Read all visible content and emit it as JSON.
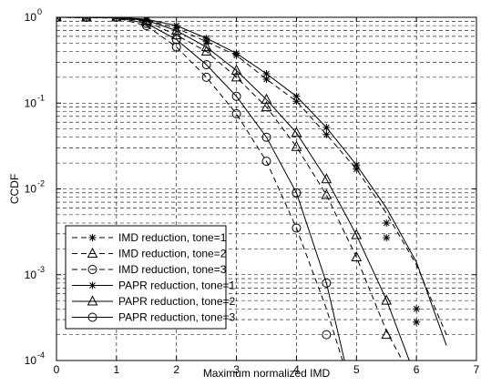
{
  "chart_data": {
    "type": "line",
    "xlabel": "Maximum normalized IMD",
    "ylabel": "CCDF",
    "xlim": [
      0,
      7
    ],
    "ylim": [
      0.0001,
      1
    ],
    "yscale": "log",
    "grid": true,
    "legend_position": "bottom-left",
    "x_ticks": [
      "0",
      "1",
      "2",
      "3",
      "4",
      "5",
      "6",
      "7"
    ],
    "y_ticks": [
      {
        "base": "10",
        "exp": "0"
      },
      {
        "base": "10",
        "exp": "-1"
      },
      {
        "base": "10",
        "exp": "-2"
      },
      {
        "base": "10",
        "exp": "-3"
      },
      {
        "base": "10",
        "exp": "-4"
      }
    ],
    "series": [
      {
        "name": "IMD reduction, tone=1",
        "style": "dashed",
        "marker": "star",
        "x": [
          0,
          1.0,
          1.5,
          2.0,
          2.5,
          3.0,
          3.5,
          4.0,
          4.5,
          5.0,
          5.5,
          6.0,
          6.5
        ],
        "y": [
          1,
          0.995,
          0.93,
          0.75,
          0.52,
          0.36,
          0.19,
          0.105,
          0.043,
          0.017,
          0.0052,
          0.0013,
          0.0002
        ],
        "markers_x": [
          0,
          0.5,
          1.0,
          1.5,
          2.0,
          2.5,
          3.0,
          3.5,
          4.0,
          4.5,
          5.0,
          5.5,
          6.0
        ],
        "markers_y": [
          1,
          1,
          1,
          0.93,
          0.75,
          0.52,
          0.36,
          0.19,
          0.105,
          0.043,
          0.017,
          0.0027,
          0.00028
        ]
      },
      {
        "name": "IMD reduction, tone=2",
        "style": "dashed",
        "marker": "triangle",
        "x": [
          0,
          1.0,
          1.5,
          2.0,
          2.5,
          3.0,
          3.5,
          4.0,
          4.5,
          5.0,
          5.5,
          6.0
        ],
        "y": [
          1,
          0.99,
          0.9,
          0.62,
          0.4,
          0.2,
          0.09,
          0.031,
          0.0085,
          0.0016,
          0.00022,
          5e-05
        ],
        "markers_x": [
          0,
          0.5,
          1.0,
          1.5,
          2.0,
          2.5,
          3.0,
          3.5,
          4.0,
          4.5,
          5.0,
          5.5
        ],
        "markers_y": [
          1,
          1,
          1,
          0.9,
          0.62,
          0.4,
          0.2,
          0.09,
          0.031,
          0.0085,
          0.0016,
          0.0002
        ]
      },
      {
        "name": "IMD reduction, tone=3",
        "style": "dashed",
        "marker": "circle",
        "x": [
          0,
          1.0,
          1.5,
          2.0,
          2.5,
          3.0,
          3.5,
          4.0,
          4.5,
          5.0
        ],
        "y": [
          1,
          0.98,
          0.8,
          0.45,
          0.2,
          0.075,
          0.021,
          0.0035,
          0.0004,
          3e-05
        ],
        "markers_x": [
          0,
          0.5,
          1.0,
          1.5,
          2.0,
          2.5,
          3.0,
          3.5,
          4.0,
          4.5
        ],
        "markers_y": [
          1,
          1,
          1,
          0.8,
          0.45,
          0.2,
          0.075,
          0.021,
          0.0035,
          0.0002
        ]
      },
      {
        "name": "PAPR reduction, tone=1",
        "style": "solid",
        "marker": "star",
        "x": [
          0,
          1.0,
          1.5,
          2.0,
          2.5,
          3.0,
          3.5,
          4.0,
          4.5,
          5.0,
          5.5,
          6.0,
          6.5
        ],
        "y": [
          1,
          0.997,
          0.95,
          0.8,
          0.57,
          0.38,
          0.22,
          0.12,
          0.052,
          0.019,
          0.006,
          0.0014,
          0.00015
        ],
        "markers_x": [
          0,
          0.5,
          1.0,
          1.5,
          2.0,
          2.5,
          3.0,
          3.5,
          4.0,
          4.5,
          5.0,
          5.5,
          6.0
        ],
        "markers_y": [
          1,
          1,
          1,
          0.95,
          0.8,
          0.57,
          0.38,
          0.22,
          0.12,
          0.052,
          0.019,
          0.004,
          0.0004
        ]
      },
      {
        "name": "PAPR reduction, tone=2",
        "style": "solid",
        "marker": "triangle",
        "x": [
          0,
          1.0,
          1.5,
          2.0,
          2.5,
          3.0,
          3.5,
          4.0,
          4.5,
          5.0,
          5.5,
          6.0
        ],
        "y": [
          1,
          0.99,
          0.92,
          0.7,
          0.45,
          0.24,
          0.11,
          0.045,
          0.013,
          0.0029,
          0.00051,
          6e-05
        ],
        "markers_x": [
          0,
          0.5,
          1.0,
          1.5,
          2.0,
          2.5,
          3.0,
          3.5,
          4.0,
          4.5,
          5.0,
          5.5
        ],
        "markers_y": [
          1,
          1,
          1,
          0.92,
          0.7,
          0.45,
          0.24,
          0.11,
          0.045,
          0.013,
          0.0029,
          0.0005
        ]
      },
      {
        "name": "PAPR reduction, tone=3",
        "style": "solid",
        "marker": "circle",
        "x": [
          0,
          1.0,
          1.5,
          2.0,
          2.5,
          3.0,
          3.5,
          4.0,
          4.5,
          4.8
        ],
        "y": [
          1,
          0.99,
          0.85,
          0.55,
          0.28,
          0.12,
          0.04,
          0.009,
          0.0008,
          0.0001
        ],
        "markers_x": [
          0,
          0.5,
          1.0,
          1.5,
          2.0,
          2.5,
          3.0,
          3.5,
          4.0,
          4.5
        ],
        "markers_y": [
          1,
          1,
          1,
          0.85,
          0.55,
          0.28,
          0.12,
          0.04,
          0.009,
          0.0008
        ]
      }
    ]
  }
}
